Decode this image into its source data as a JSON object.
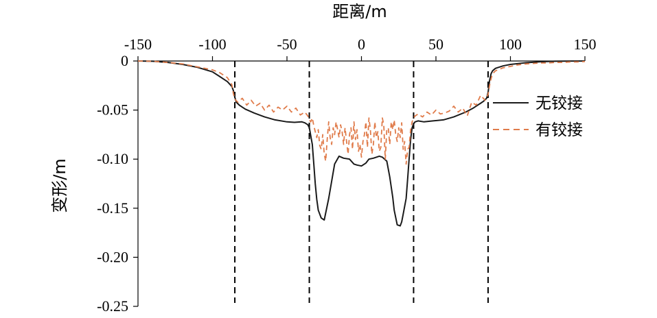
{
  "chart_data": {
    "type": "line",
    "title": "",
    "xlabel": "距离/m",
    "ylabel": "变形/m",
    "xlim": [
      -150,
      150
    ],
    "ylim": [
      -0.25,
      0
    ],
    "x_axis_position": "top",
    "x_ticks": [
      -150,
      -100,
      -50,
      0,
      50,
      100,
      150
    ],
    "x_tick_labels": [
      "-150",
      "-100",
      "-50",
      "0",
      "50",
      "100",
      "150"
    ],
    "y_ticks": [
      0,
      -0.05,
      -0.1,
      -0.15,
      -0.2,
      -0.25
    ],
    "y_tick_labels": [
      "0",
      "-0.05",
      "-0.10",
      "-0.15",
      "-0.20",
      "-0.25"
    ],
    "grid": false,
    "legend_position": "right",
    "vertical_reference_lines": [
      -85,
      -35,
      35,
      85
    ],
    "colors": {
      "series_1": "#1a1a1a",
      "series_2": "#e07b4a",
      "reference_lines": "#000000"
    },
    "series": [
      {
        "name": "无铰接",
        "style": "solid",
        "x": [
          -150,
          -140,
          -130,
          -120,
          -110,
          -100,
          -95,
          -90,
          -87,
          -86,
          -85,
          -84,
          -82,
          -78,
          -72,
          -65,
          -58,
          -50,
          -45,
          -40,
          -38,
          -36,
          -35,
          -33,
          -32,
          -31,
          -30,
          -29,
          -27,
          -25,
          -22,
          -18,
          -15,
          -12,
          -8,
          -5,
          -3,
          0,
          3,
          5,
          8,
          12,
          14,
          17,
          19,
          21,
          22,
          24,
          26,
          27,
          28,
          30,
          31,
          32,
          33,
          34,
          35,
          36,
          38,
          42,
          48,
          55,
          62,
          70,
          75,
          78,
          80,
          82,
          84,
          85,
          86,
          87,
          88,
          90,
          95,
          100,
          110,
          120,
          130,
          140,
          150
        ],
        "y": [
          0,
          -0.0003,
          -0.0015,
          -0.0035,
          -0.0065,
          -0.011,
          -0.016,
          -0.021,
          -0.026,
          -0.03,
          -0.037,
          -0.042,
          -0.045,
          -0.049,
          -0.053,
          -0.057,
          -0.06,
          -0.062,
          -0.0625,
          -0.062,
          -0.063,
          -0.065,
          -0.068,
          -0.085,
          -0.105,
          -0.125,
          -0.141,
          -0.152,
          -0.16,
          -0.162,
          -0.14,
          -0.105,
          -0.097,
          -0.099,
          -0.1,
          -0.105,
          -0.106,
          -0.107,
          -0.104,
          -0.1,
          -0.099,
          -0.097,
          -0.098,
          -0.102,
          -0.118,
          -0.139,
          -0.152,
          -0.167,
          -0.168,
          -0.164,
          -0.156,
          -0.14,
          -0.12,
          -0.1,
          -0.08,
          -0.068,
          -0.064,
          -0.062,
          -0.061,
          -0.062,
          -0.061,
          -0.06,
          -0.057,
          -0.052,
          -0.048,
          -0.045,
          -0.043,
          -0.041,
          -0.038,
          -0.032,
          -0.02,
          -0.013,
          -0.01,
          -0.0075,
          -0.005,
          -0.0035,
          -0.0018,
          -0.0008,
          -0.0003,
          -0.0001,
          0
        ]
      },
      {
        "name": "有铰接",
        "style": "dashed",
        "x": [
          -150,
          -140,
          -130,
          -120,
          -110,
          -100,
          -95,
          -90,
          -87,
          -86,
          -85,
          -83,
          -80,
          -77,
          -74,
          -71,
          -68,
          -65,
          -62,
          -59,
          -56,
          -53,
          -50,
          -47,
          -44,
          -41,
          -38,
          -36,
          -35,
          -34,
          -33,
          -32,
          -31,
          -30,
          -29,
          -28,
          -27,
          -26,
          -25,
          -24,
          -23,
          -22,
          -21,
          -20,
          -19,
          -18,
          -17,
          -16,
          -15,
          -14,
          -13,
          -12,
          -11,
          -10,
          -9,
          -8,
          -7,
          -6,
          -5,
          -4,
          -3,
          -2,
          -1,
          0,
          1,
          2,
          3,
          4,
          5,
          6,
          7,
          8,
          9,
          10,
          11,
          12,
          13,
          14,
          15,
          16,
          17,
          18,
          19,
          20,
          21,
          22,
          23,
          24,
          25,
          26,
          27,
          28,
          29,
          30,
          31,
          32,
          33,
          34,
          35,
          36,
          38,
          41,
          44,
          47,
          50,
          53,
          56,
          59,
          62,
          65,
          68,
          71,
          74,
          77,
          80,
          83,
          84,
          85,
          86,
          87,
          88,
          90,
          95,
          100,
          105,
          110,
          115,
          120,
          125,
          130,
          135,
          140,
          145,
          150
        ],
        "y": [
          0,
          -0.0003,
          -0.0015,
          -0.003,
          -0.006,
          -0.009,
          -0.012,
          -0.017,
          -0.024,
          -0.033,
          -0.039,
          -0.042,
          -0.038,
          -0.045,
          -0.04,
          -0.046,
          -0.043,
          -0.05,
          -0.045,
          -0.052,
          -0.047,
          -0.05,
          -0.046,
          -0.052,
          -0.048,
          -0.055,
          -0.052,
          -0.056,
          -0.06,
          -0.062,
          -0.058,
          -0.066,
          -0.072,
          -0.078,
          -0.07,
          -0.086,
          -0.09,
          -0.075,
          -0.095,
          -0.102,
          -0.08,
          -0.062,
          -0.078,
          -0.085,
          -0.068,
          -0.075,
          -0.062,
          -0.07,
          -0.078,
          -0.065,
          -0.072,
          -0.085,
          -0.068,
          -0.082,
          -0.095,
          -0.075,
          -0.068,
          -0.09,
          -0.062,
          -0.08,
          -0.07,
          -0.092,
          -0.085,
          -0.098,
          -0.082,
          -0.075,
          -0.062,
          -0.088,
          -0.058,
          -0.07,
          -0.095,
          -0.085,
          -0.062,
          -0.078,
          -0.072,
          -0.092,
          -0.088,
          -0.058,
          -0.065,
          -0.1,
          -0.07,
          -0.068,
          -0.085,
          -0.062,
          -0.07,
          -0.06,
          -0.075,
          -0.082,
          -0.068,
          -0.078,
          -0.063,
          -0.09,
          -0.082,
          -0.105,
          -0.09,
          -0.088,
          -0.07,
          -0.062,
          -0.058,
          -0.056,
          -0.054,
          -0.057,
          -0.052,
          -0.055,
          -0.05,
          -0.054,
          -0.053,
          -0.051,
          -0.046,
          -0.052,
          -0.048,
          -0.056,
          -0.042,
          -0.045,
          -0.035,
          -0.04,
          -0.037,
          -0.034,
          -0.025,
          -0.018,
          -0.013,
          -0.01,
          -0.007,
          -0.0055,
          -0.004,
          -0.003,
          -0.0025,
          -0.002,
          -0.002,
          -0.0015,
          -0.0015,
          -0.001,
          -0.001,
          -0.0005
        ]
      }
    ]
  }
}
